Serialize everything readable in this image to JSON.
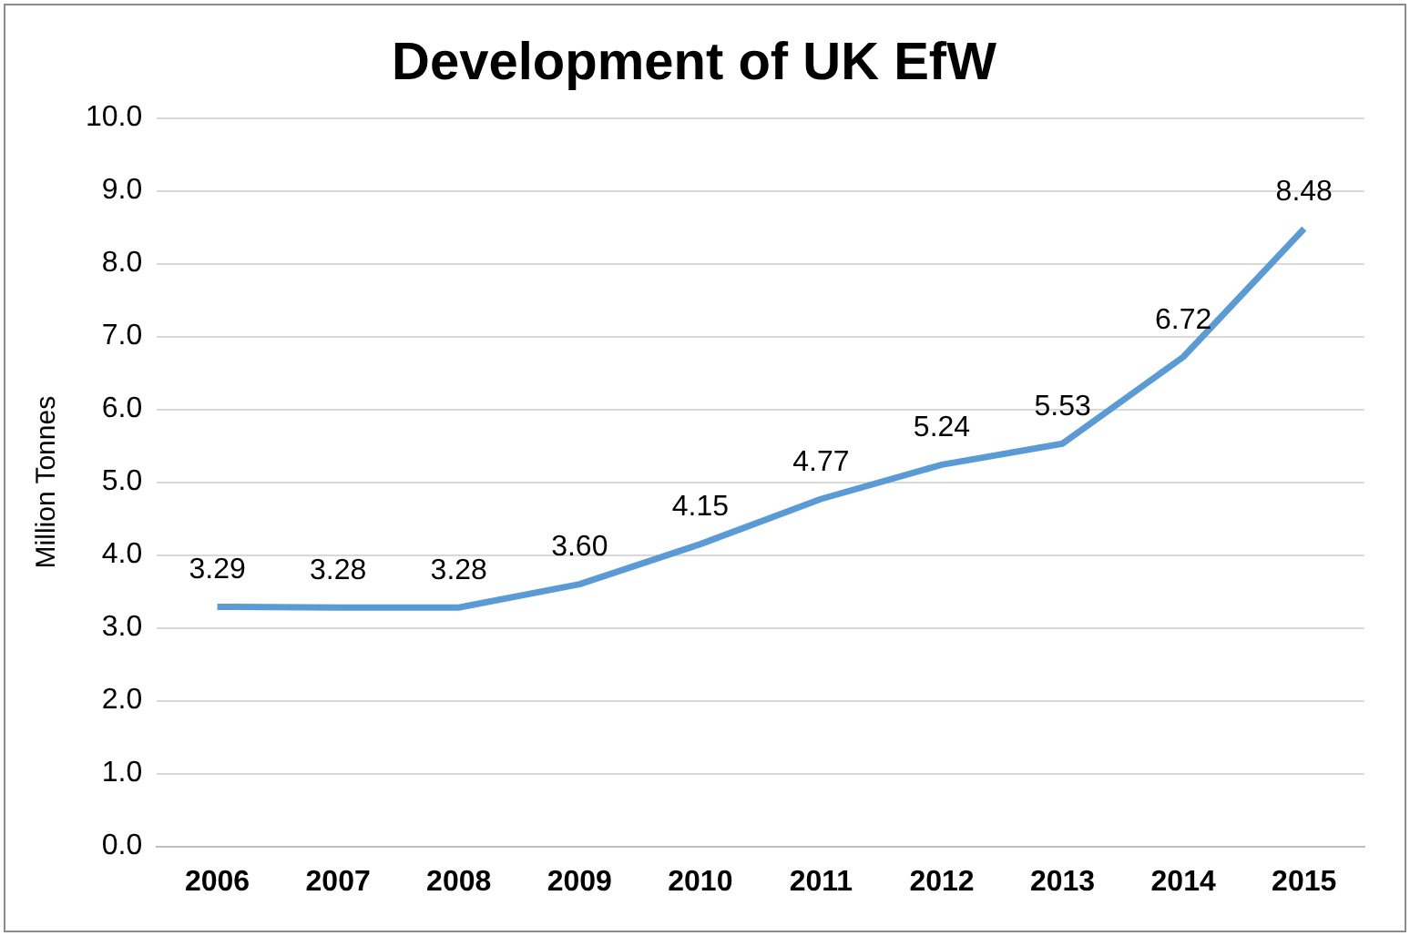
{
  "chart_data": {
    "type": "line",
    "title": "Development of UK EfW",
    "ylabel": "Million Tonnes",
    "categories": [
      "2006",
      "2007",
      "2008",
      "2009",
      "2010",
      "2011",
      "2012",
      "2013",
      "2014",
      "2015"
    ],
    "series": [
      {
        "color": "#5b9bd5",
        "values": [
          3.29,
          3.28,
          3.28,
          3.6,
          4.15,
          4.77,
          5.24,
          5.53,
          6.72,
          8.48
        ],
        "value_labels": [
          "3.29",
          "3.28",
          "3.28",
          "3.60",
          "4.15",
          "4.77",
          "5.24",
          "5.53",
          "6.72",
          "8.48"
        ]
      }
    ],
    "ylim": [
      0,
      10
    ],
    "yticks": [
      {
        "value": 0,
        "label": "0.0"
      },
      {
        "value": 1,
        "label": "1.0"
      },
      {
        "value": 2,
        "label": "2.0"
      },
      {
        "value": 3,
        "label": "3.0"
      },
      {
        "value": 4,
        "label": "4.0"
      },
      {
        "value": 5,
        "label": "5.0"
      },
      {
        "value": 6,
        "label": "6.0"
      },
      {
        "value": 7,
        "label": "7.0"
      },
      {
        "value": 8,
        "label": "8.0"
      },
      {
        "value": 9,
        "label": "9.0"
      },
      {
        "value": 10,
        "label": "10.0"
      }
    ],
    "grid": "y",
    "legend": false,
    "marker": "none",
    "line_style": "solid"
  }
}
